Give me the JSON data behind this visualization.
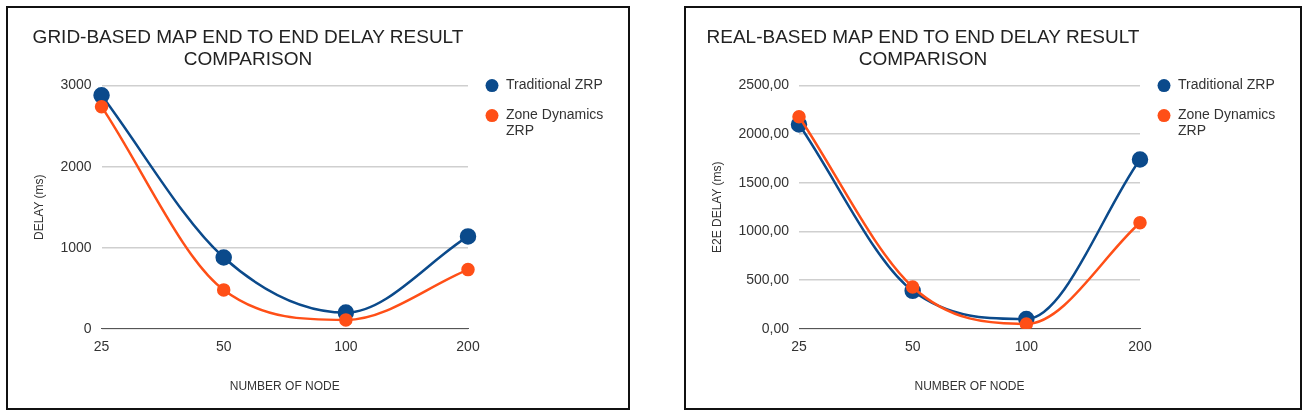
{
  "chart_data": [
    {
      "type": "line",
      "title": [
        "GRID-BASED MAP END TO END DELAY RESULT",
        "COMPARISON"
      ],
      "xlabel": "NUMBER OF NODE",
      "ylabel": "DELAY (ms)",
      "categories": [
        "25",
        "50",
        "100",
        "200"
      ],
      "series": [
        {
          "name": "Traditional ZRP",
          "color": "#0b4a8b",
          "values": [
            2880,
            880,
            200,
            1140
          ]
        },
        {
          "name": "Zone Dynamics ZRP",
          "color": "#ff4f17",
          "values": [
            2740,
            480,
            110,
            730
          ]
        }
      ],
      "ylim": [
        0,
        3000
      ],
      "yticks": [
        0,
        1000,
        2000,
        3000
      ],
      "grid": "y",
      "legend": "top right",
      "marker": "circle",
      "line_style": "solid"
    },
    {
      "type": "line",
      "title": [
        "REAL-BASED MAP END TO END DELAY RESULT",
        "COMPARISON"
      ],
      "xlabel": "NUMBER OF NODE",
      "ylabel": "E2E DELAY (ms)",
      "categories": [
        "25",
        "50",
        "100",
        "200"
      ],
      "series": [
        {
          "name": "Traditional ZRP",
          "color": "#0b4a8b",
          "values": [
            2100,
            390,
            100,
            1740
          ]
        },
        {
          "name": "Zone Dynamics ZRP",
          "color": "#ff4f17",
          "values": [
            2180,
            430,
            50,
            1090
          ]
        }
      ],
      "ylim": [
        0,
        2500
      ],
      "yticks": [
        {
          "value": 0,
          "label": "0,00"
        },
        {
          "value": 500,
          "label": "500,00"
        },
        {
          "value": 1000,
          "label": "1000,00"
        },
        {
          "value": 1500,
          "label": "1500,00"
        },
        {
          "value": 2000,
          "label": "2000,00"
        },
        {
          "value": 2500,
          "label": "2500,00"
        }
      ],
      "grid": "y",
      "legend": "top right",
      "marker": "circle",
      "line_style": "solid"
    }
  ]
}
